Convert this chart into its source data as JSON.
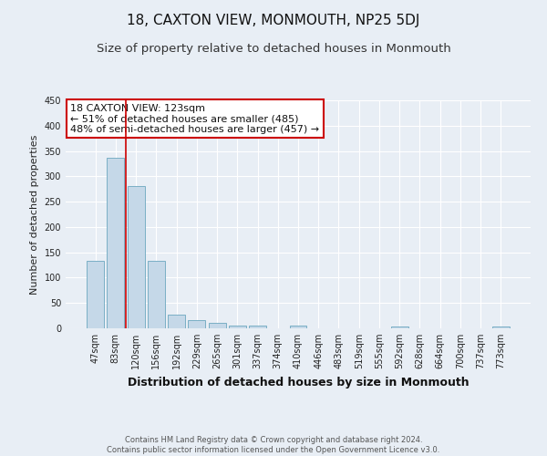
{
  "title": "18, CAXTON VIEW, MONMOUTH, NP25 5DJ",
  "subtitle": "Size of property relative to detached houses in Monmouth",
  "xlabel": "Distribution of detached houses by size in Monmouth",
  "ylabel": "Number of detached properties",
  "bar_labels": [
    "47sqm",
    "83sqm",
    "120sqm",
    "156sqm",
    "192sqm",
    "229sqm",
    "265sqm",
    "301sqm",
    "337sqm",
    "374sqm",
    "410sqm",
    "446sqm",
    "483sqm",
    "519sqm",
    "555sqm",
    "592sqm",
    "628sqm",
    "664sqm",
    "700sqm",
    "737sqm",
    "773sqm"
  ],
  "bar_values": [
    133,
    336,
    281,
    133,
    27,
    17,
    11,
    6,
    5,
    0,
    5,
    0,
    0,
    0,
    0,
    3,
    0,
    0,
    0,
    0,
    3
  ],
  "bar_color": "#c5d8e8",
  "bar_edge_color": "#7aafc5",
  "vline_color": "#cc0000",
  "ylim": [
    0,
    450
  ],
  "yticks": [
    0,
    50,
    100,
    150,
    200,
    250,
    300,
    350,
    400,
    450
  ],
  "annotation_title": "18 CAXTON VIEW: 123sqm",
  "annotation_line1": "← 51% of detached houses are smaller (485)",
  "annotation_line2": "48% of semi-detached houses are larger (457) →",
  "annotation_box_color": "#ffffff",
  "annotation_box_edge_color": "#cc0000",
  "footer_line1": "Contains HM Land Registry data © Crown copyright and database right 2024.",
  "footer_line2": "Contains public sector information licensed under the Open Government Licence v3.0.",
  "bg_color": "#e8eef5",
  "plot_bg_color": "#e8eef5",
  "title_fontsize": 11,
  "subtitle_fontsize": 9.5,
  "xlabel_fontsize": 9,
  "ylabel_fontsize": 8,
  "tick_fontsize": 7,
  "annot_fontsize": 8,
  "footer_fontsize": 6
}
